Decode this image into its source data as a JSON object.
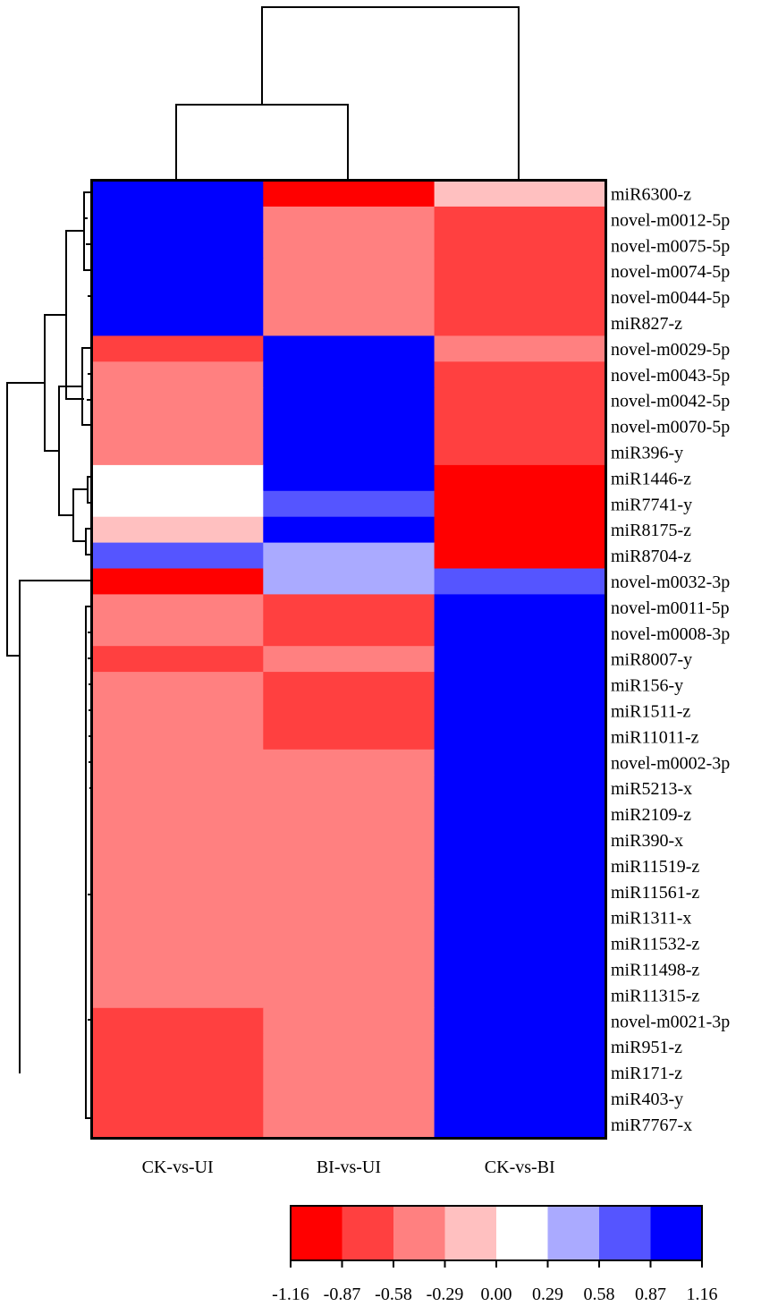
{
  "chart_data": {
    "type": "heatmap",
    "columns": [
      "CK-vs-UI",
      "BI-vs-UI",
      "CK-vs-BI"
    ],
    "rows": [
      "miR6300-z",
      "novel-m0012-5p",
      "novel-m0075-5p",
      "novel-m0074-5p",
      "novel-m0044-5p",
      "miR827-z",
      "novel-m0029-5p",
      "novel-m0043-5p",
      "novel-m0042-5p",
      "novel-m0070-5p",
      "miR396-y",
      "miR1446-z",
      "miR7741-y",
      "miR8175-z",
      "miR8704-z",
      "novel-m0032-3p",
      "novel-m0011-5p",
      "novel-m0008-3p",
      "miR8007-y",
      "miR156-y",
      "miR1511-z",
      "miR11011-z",
      "novel-m0002-3p",
      "miR5213-x",
      "miR2109-z",
      "miR390-x",
      "miR11519-z",
      "miR11561-z",
      "miR1311-x",
      "miR11532-z",
      "miR11498-z",
      "miR11315-z",
      "novel-m0021-3p",
      "miR951-z",
      "miR171-z",
      "miR403-y",
      "miR7767-x"
    ],
    "values": [
      [
        1.0,
        -1.0,
        -0.15
      ],
      [
        1.0,
        -0.45,
        -0.75
      ],
      [
        1.0,
        -0.45,
        -0.75
      ],
      [
        1.0,
        -0.45,
        -0.75
      ],
      [
        1.0,
        -0.45,
        -0.75
      ],
      [
        1.0,
        -0.45,
        -0.75
      ],
      [
        -0.75,
        1.0,
        -0.45
      ],
      [
        -0.45,
        1.0,
        -0.75
      ],
      [
        -0.45,
        1.0,
        -0.75
      ],
      [
        -0.45,
        1.0,
        -0.75
      ],
      [
        -0.45,
        1.0,
        -0.75
      ],
      [
        0.0,
        1.0,
        -1.0
      ],
      [
        0.0,
        0.7,
        -1.0
      ],
      [
        -0.15,
        1.0,
        -1.0
      ],
      [
        0.7,
        0.45,
        -1.0
      ],
      [
        -1.0,
        0.45,
        0.7
      ],
      [
        -0.45,
        -0.75,
        1.0
      ],
      [
        -0.45,
        -0.75,
        1.0
      ],
      [
        -0.75,
        -0.45,
        1.0
      ],
      [
        -0.45,
        -0.75,
        1.0
      ],
      [
        -0.45,
        -0.75,
        1.0
      ],
      [
        -0.45,
        -0.75,
        1.0
      ],
      [
        -0.45,
        -0.45,
        1.0
      ],
      [
        -0.45,
        -0.45,
        1.0
      ],
      [
        -0.45,
        -0.45,
        1.0
      ],
      [
        -0.45,
        -0.45,
        1.0
      ],
      [
        -0.45,
        -0.45,
        1.0
      ],
      [
        -0.45,
        -0.45,
        1.0
      ],
      [
        -0.45,
        -0.45,
        1.0
      ],
      [
        -0.45,
        -0.45,
        1.0
      ],
      [
        -0.45,
        -0.45,
        1.0
      ],
      [
        -0.45,
        -0.45,
        1.0
      ],
      [
        -0.75,
        -0.45,
        1.0
      ],
      [
        -0.75,
        -0.45,
        1.0
      ],
      [
        -0.75,
        -0.45,
        1.0
      ],
      [
        -0.75,
        -0.45,
        1.0
      ],
      [
        -0.75,
        -0.45,
        1.0
      ]
    ],
    "legend": {
      "ticks": [
        "-1.16",
        "-0.87",
        "-0.58",
        "-0.29",
        "0.00",
        "0.29",
        "0.58",
        "0.87",
        "1.16"
      ],
      "range": [
        -1.16,
        1.16
      ],
      "colors": [
        "#ff0000",
        "#ff4040",
        "#ff8080",
        "#ffc0c0",
        "#ffffff",
        "#aaaaff",
        "#5555ff",
        "#0000ff"
      ]
    },
    "column_dendrogram": "((CK-vs-UI,BI-vs-UI),CK-vs-BI)",
    "row_dendrogram": true
  }
}
